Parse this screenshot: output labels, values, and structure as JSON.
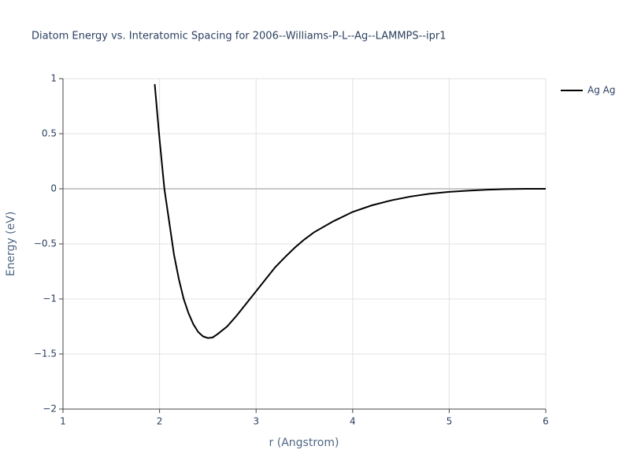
{
  "chart_data": {
    "type": "line",
    "title": "Diatom Energy vs. Interatomic Spacing for 2006--Williams-P-L--Ag--LAMMPS--ipr1",
    "x_label": "r (Angstrom)",
    "y_label": "Energy (eV)",
    "x": [
      1.95,
      2.0,
      2.05,
      2.1,
      2.15,
      2.2,
      2.25,
      2.3,
      2.35,
      2.4,
      2.45,
      2.5,
      2.55,
      2.6,
      2.7,
      2.8,
      2.9,
      3.0,
      3.1,
      3.2,
      3.3,
      3.4,
      3.5,
      3.6,
      3.8,
      4.0,
      4.2,
      4.4,
      4.6,
      4.8,
      5.0,
      5.2,
      5.4,
      5.6,
      5.8,
      6.0
    ],
    "series": [
      {
        "name": "Ag Ag",
        "color": "#000000",
        "values": [
          0.95,
          0.45,
          0.0,
          -0.3,
          -0.6,
          -0.82,
          -1.0,
          -1.13,
          -1.23,
          -1.3,
          -1.34,
          -1.355,
          -1.35,
          -1.32,
          -1.25,
          -1.15,
          -1.04,
          -0.93,
          -0.82,
          -0.71,
          -0.62,
          -0.535,
          -0.46,
          -0.395,
          -0.295,
          -0.21,
          -0.15,
          -0.105,
          -0.07,
          -0.045,
          -0.028,
          -0.017,
          -0.008,
          -0.003,
          0.0,
          0.0
        ]
      }
    ],
    "xlim": [
      1,
      6
    ],
    "xticks": [
      1,
      2,
      3,
      4,
      5,
      6
    ],
    "ylim": [
      -2,
      1
    ],
    "yticks": [
      {
        "value": -2,
        "label": "−2"
      },
      {
        "value": -1.5,
        "label": "−1.5"
      },
      {
        "value": -1,
        "label": "−1"
      },
      {
        "value": -0.5,
        "label": "−0.5"
      },
      0,
      0.5,
      1
    ],
    "grid": true,
    "legend": "right"
  }
}
